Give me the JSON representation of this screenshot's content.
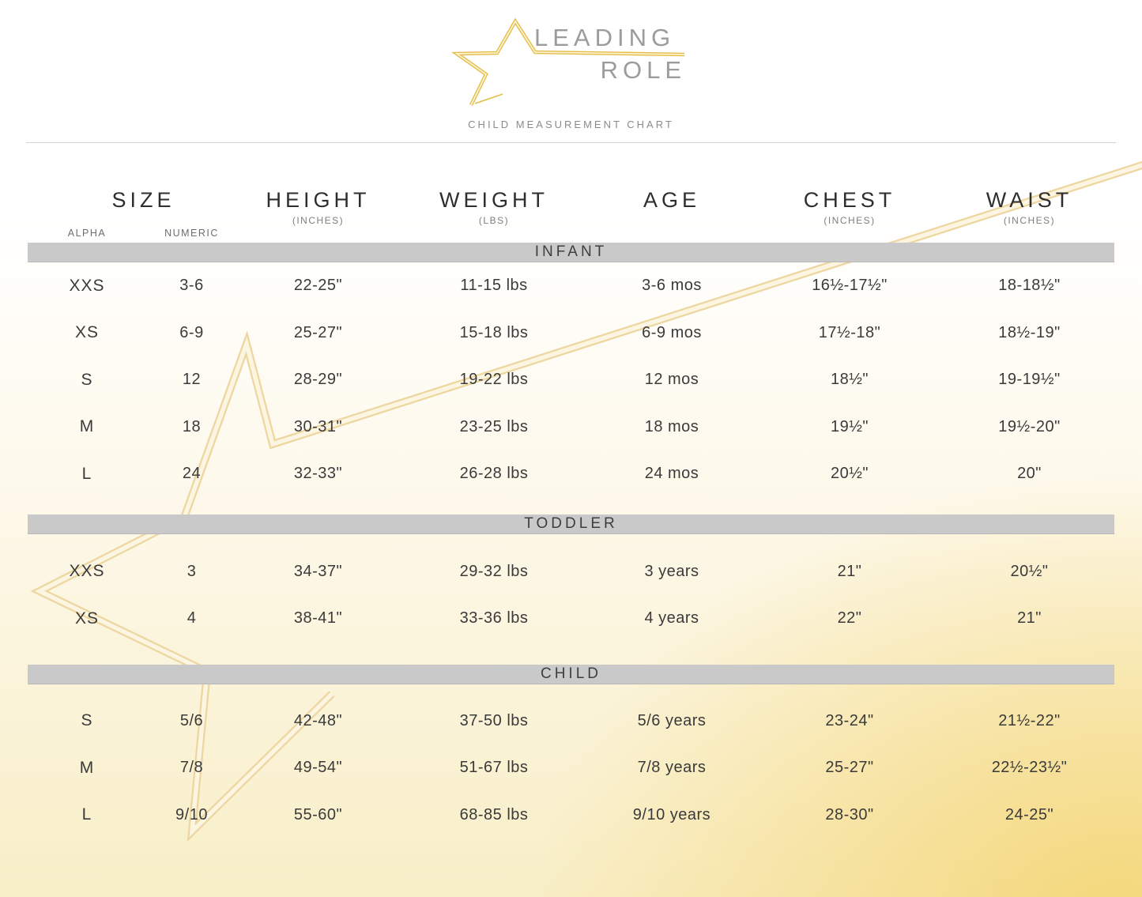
{
  "brand": {
    "line1": "LEADING",
    "line2": "ROLE",
    "subtitle": "CHILD MEASUREMENT CHART"
  },
  "colors": {
    "accent_gold": "#e3bd49",
    "watermark_gold": "#edd6a0",
    "band_gray": "#c9c9c9",
    "background_yellow": "#f4d573",
    "text_dark": "#3a3a3a"
  },
  "table": {
    "header": {
      "size": {
        "label": "SIZE",
        "alpha": "ALPHA",
        "numeric": "NUMERIC"
      },
      "height": {
        "label": "HEIGHT",
        "sub": "(INCHES)"
      },
      "weight": {
        "label": "WEIGHT",
        "sub": "(LBS)"
      },
      "age": {
        "label": "AGE",
        "sub": ""
      },
      "chest": {
        "label": "CHEST",
        "sub": "(INCHES)"
      },
      "waist": {
        "label": "WAIST",
        "sub": "(INCHES)"
      }
    },
    "column_keys": [
      "alpha",
      "numeric",
      "height",
      "weight",
      "age",
      "chest",
      "waist"
    ],
    "sections": [
      {
        "name": "INFANT",
        "rows": [
          [
            "XXS",
            "3-6",
            "22-25\"",
            "11-15 lbs",
            "3-6 mos",
            "16½-17½\"",
            "18-18½\""
          ],
          [
            "XS",
            "6-9",
            "25-27\"",
            "15-18 lbs",
            "6-9 mos",
            "17½-18\"",
            "18½-19\""
          ],
          [
            "S",
            "12",
            "28-29\"",
            "19-22 lbs",
            "12 mos",
            "18½\"",
            "19-19½\""
          ],
          [
            "M",
            "18",
            "30-31\"",
            "23-25 lbs",
            "18 mos",
            "19½\"",
            "19½-20\""
          ],
          [
            "L",
            "24",
            "32-33\"",
            "26-28 lbs",
            "24 mos",
            "20½\"",
            "20\""
          ]
        ]
      },
      {
        "name": "TODDLER",
        "rows": [
          [
            "XXS",
            "3",
            "34-37\"",
            "29-32 lbs",
            "3 years",
            "21\"",
            "20½\""
          ],
          [
            "XS",
            "4",
            "38-41\"",
            "33-36 lbs",
            "4 years",
            "22\"",
            "21\""
          ]
        ]
      },
      {
        "name": "CHILD",
        "rows": [
          [
            "S",
            "5/6",
            "42-48\"",
            "37-50 lbs",
            "5/6 years",
            "23-24\"",
            "21½-22\""
          ],
          [
            "M",
            "7/8",
            "49-54\"",
            "51-67 lbs",
            "7/8 years",
            "25-27\"",
            "22½-23½\""
          ],
          [
            "L",
            "9/10",
            "55-60\"",
            "68-85 lbs",
            "9/10 years",
            "28-30\"",
            "24-25\""
          ]
        ]
      }
    ]
  }
}
